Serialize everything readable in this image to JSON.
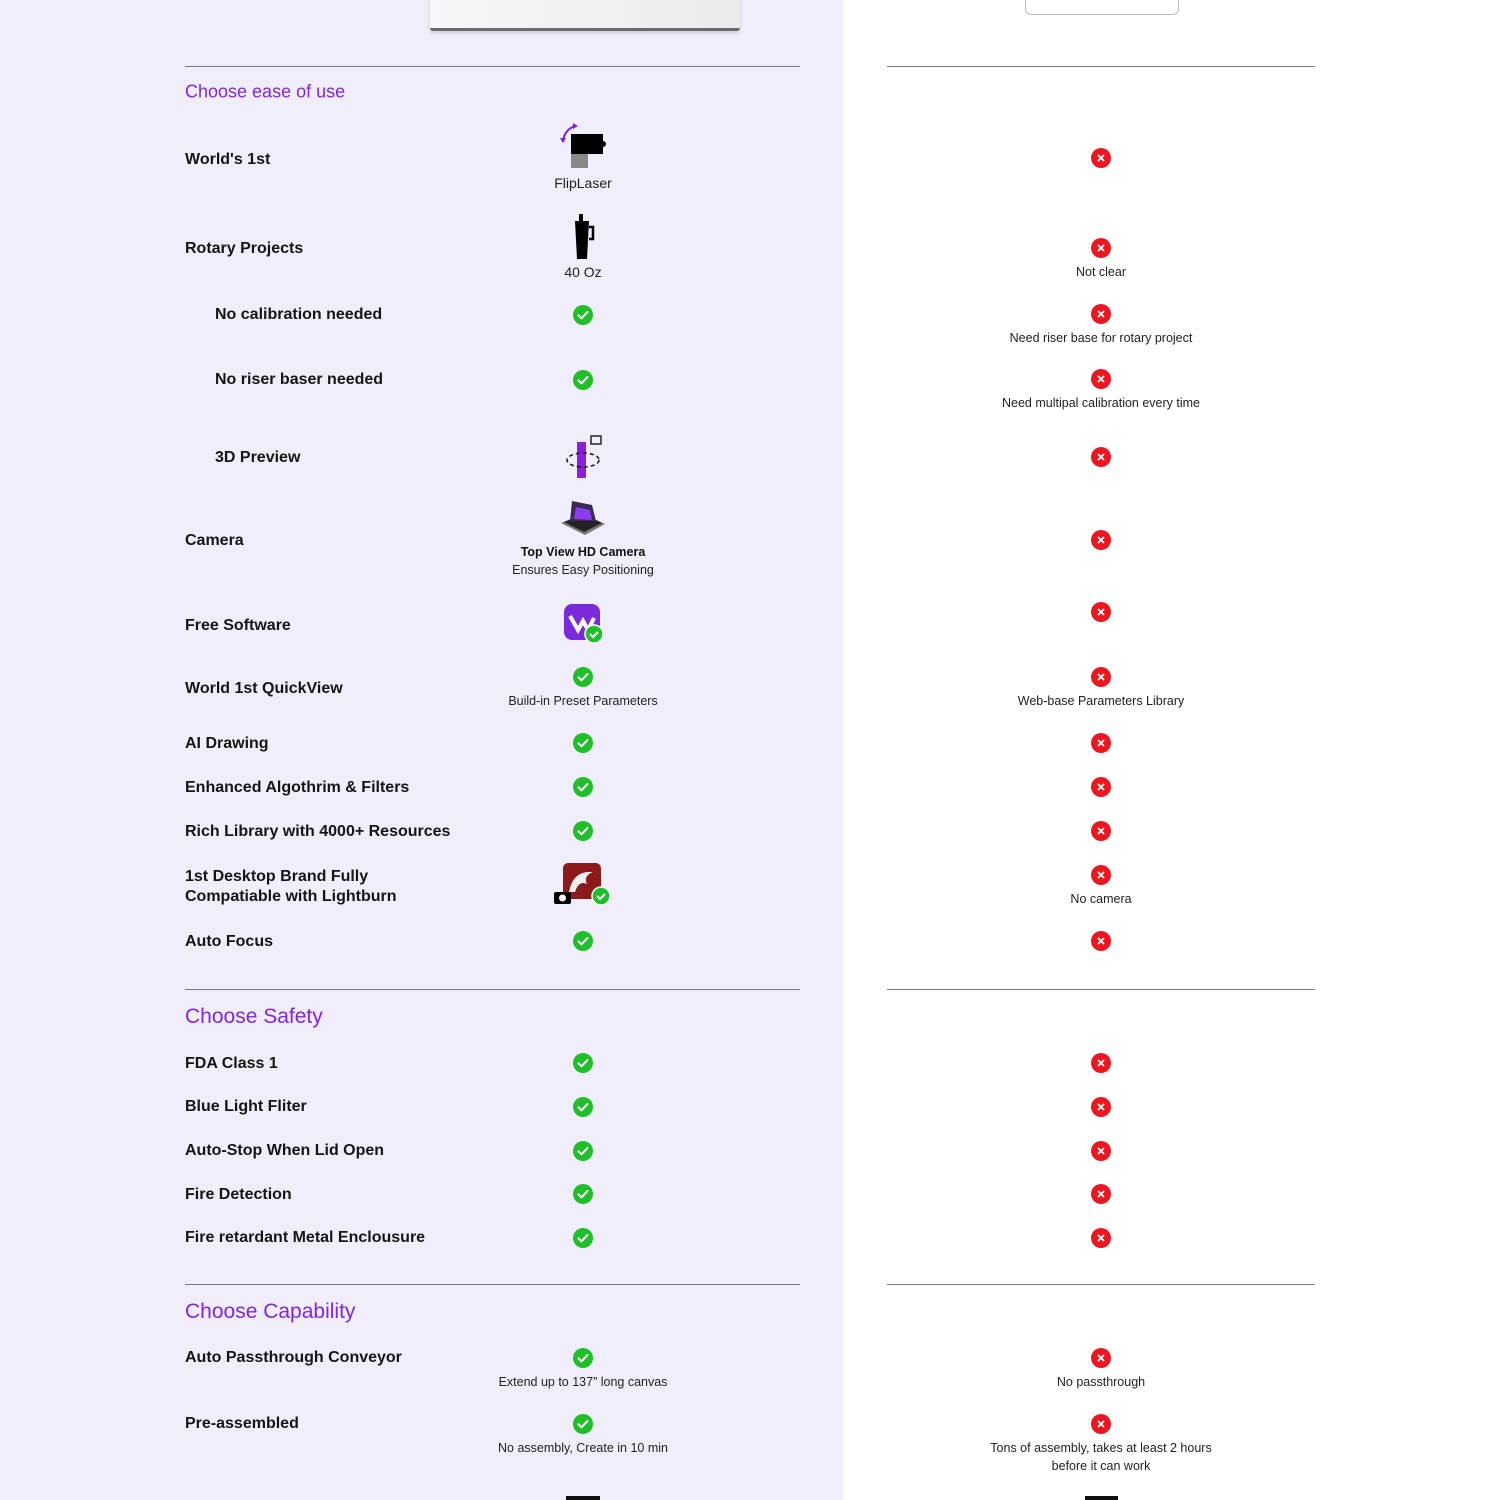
{
  "colors": {
    "accent": "#8224e3",
    "check": "#1fbf2a",
    "cross": "#ec1620",
    "left_panel": "#f1eefc"
  },
  "sections": [
    {
      "heading": "Choose ease of use"
    },
    {
      "heading": "Choose Safety"
    },
    {
      "heading": "Choose Capability"
    }
  ],
  "rows": [
    {
      "label": "World's 1st",
      "left": {
        "mark": "fliplaser-icon",
        "text": "FlipLaser"
      },
      "right": {
        "mark": "cross"
      }
    },
    {
      "label": "Rotary Projects",
      "left": {
        "mark": "tumbler-icon",
        "text": "40 Oz"
      },
      "right": {
        "mark": "cross",
        "text": "Not clear"
      }
    },
    {
      "label": "No calibration needed",
      "left": {
        "mark": "check"
      },
      "right": {
        "mark": "cross",
        "text": "Need riser base for rotary project"
      }
    },
    {
      "label": "No riser baser needed",
      "left": {
        "mark": "check"
      },
      "right": {
        "mark": "cross",
        "text": "Need multipal calibration every time"
      }
    },
    {
      "label": "3D Preview",
      "left": {
        "mark": "3d-preview-icon"
      },
      "right": {
        "mark": "cross"
      }
    },
    {
      "label": "Camera",
      "left": {
        "mark": "camera-lid-icon",
        "title": "Top View  HD Camera",
        "text": "Ensures Easy Positioning"
      },
      "right": {
        "mark": "cross"
      }
    },
    {
      "label": "Free Software",
      "left": {
        "mark": "software-app-icon"
      },
      "right": {
        "mark": "cross"
      }
    },
    {
      "label": "World 1st QuickView",
      "left": {
        "mark": "check",
        "text": "Build-in Preset Parameters"
      },
      "right": {
        "mark": "cross",
        "text": "Web-base Parameters Library"
      }
    },
    {
      "label": "AI Drawing",
      "left": {
        "mark": "check"
      },
      "right": {
        "mark": "cross"
      }
    },
    {
      "label": "Enhanced Algothrim & Filters",
      "left": {
        "mark": "check"
      },
      "right": {
        "mark": "cross"
      }
    },
    {
      "label": "Rich Library with 4000+ Resources",
      "left": {
        "mark": "check"
      },
      "right": {
        "mark": "cross"
      }
    },
    {
      "label": "1st Desktop Brand Fully",
      "label2": "Compatiable with Lightburn",
      "left": {
        "mark": "lightburn-icon"
      },
      "right": {
        "mark": "cross",
        "text": "No camera"
      }
    },
    {
      "label": "Auto Focus",
      "left": {
        "mark": "check"
      },
      "right": {
        "mark": "cross"
      }
    },
    {
      "label": "FDA Class 1",
      "left": {
        "mark": "check"
      },
      "right": {
        "mark": "cross"
      }
    },
    {
      "label": "Blue Light Fliter",
      "left": {
        "mark": "check"
      },
      "right": {
        "mark": "cross"
      }
    },
    {
      "label": "Auto-Stop When Lid Open",
      "left": {
        "mark": "check"
      },
      "right": {
        "mark": "cross"
      }
    },
    {
      "label": "Fire Detection",
      "left": {
        "mark": "check"
      },
      "right": {
        "mark": "cross"
      }
    },
    {
      "label": "Fire retardant Metal Enclousure",
      "left": {
        "mark": "check"
      },
      "right": {
        "mark": "cross"
      }
    },
    {
      "label": "Auto Passthrough Conveyor",
      "left": {
        "mark": "check",
        "text": "Extend up to 137” long canvas"
      },
      "right": {
        "mark": "cross",
        "text": "No passthrough"
      }
    },
    {
      "label": "Pre-assembled",
      "left": {
        "mark": "check",
        "text": "No assembly, Create in 10 min"
      },
      "right": {
        "mark": "cross",
        "text": "Tons of assembly, takes at least 2 hours",
        "text2": "before it can work"
      }
    }
  ]
}
